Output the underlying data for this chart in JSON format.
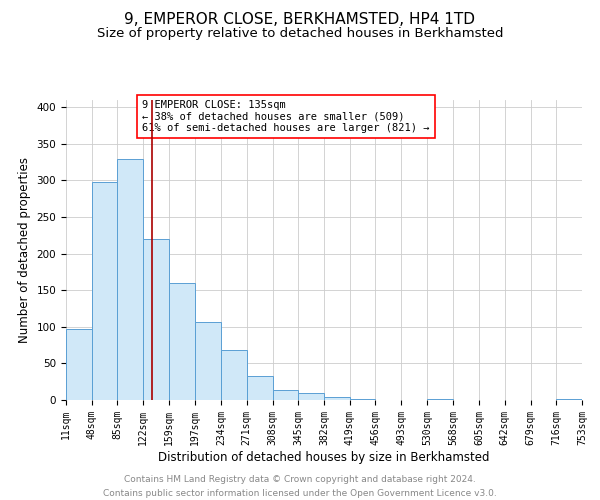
{
  "title_line1": "9, EMPEROR CLOSE, BERKHAMSTED, HP4 1TD",
  "title_line2": "Size of property relative to detached houses in Berkhamsted",
  "xlabel": "Distribution of detached houses by size in Berkhamsted",
  "ylabel": "Number of detached properties",
  "footer_line1": "Contains HM Land Registry data © Crown copyright and database right 2024.",
  "footer_line2": "Contains public sector information licensed under the Open Government Licence v3.0.",
  "bin_edges": [
    11,
    48,
    85,
    122,
    159,
    197,
    234,
    271,
    308,
    345,
    382,
    419,
    456,
    493,
    530,
    568,
    605,
    642,
    679,
    716,
    753
  ],
  "bin_counts": [
    97,
    298,
    330,
    220,
    160,
    106,
    69,
    33,
    14,
    10,
    4,
    1,
    0,
    0,
    1,
    0,
    0,
    0,
    0,
    2
  ],
  "property_size": 135,
  "red_line_color": "#aa0000",
  "bar_facecolor": "#d0e8f8",
  "bar_edgecolor": "#5a9fd4",
  "annotation_text": "9 EMPEROR CLOSE: 135sqm\n← 38% of detached houses are smaller (509)\n61% of semi-detached houses are larger (821) →",
  "annotation_boxcolor": "white",
  "annotation_edgecolor": "red",
  "ylim": [
    0,
    410
  ],
  "yticks": [
    0,
    50,
    100,
    150,
    200,
    250,
    300,
    350,
    400
  ],
  "grid_color": "#cccccc",
  "background_color": "white",
  "title_fontsize": 11,
  "subtitle_fontsize": 9.5,
  "axis_label_fontsize": 8.5,
  "tick_label_fontsize": 7,
  "annotation_fontsize": 7.5,
  "footer_fontsize": 6.5
}
